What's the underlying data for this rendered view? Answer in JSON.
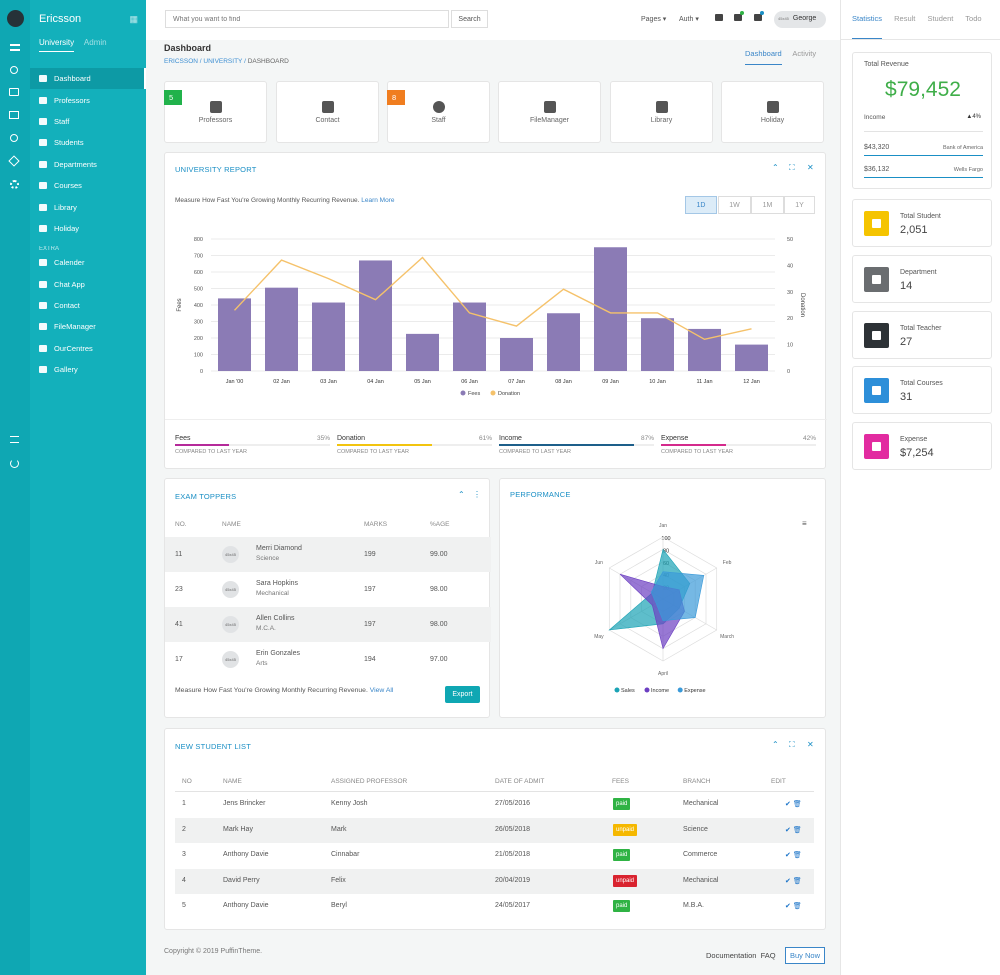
{
  "sidebar": {
    "brand": "Ericsson",
    "tabs": [
      "University",
      "Admin"
    ],
    "items": [
      "Dashboard",
      "Professors",
      "Staff",
      "Students",
      "Departments",
      "Courses",
      "Library",
      "Holiday"
    ],
    "extra_label": "EXTRA",
    "extra_items": [
      "Calender",
      "Chat App",
      "Contact",
      "FileManager",
      "OurCentres",
      "Gallery"
    ]
  },
  "topbar": {
    "search_placeholder": "What you want to find",
    "search_button": "Search",
    "menus": [
      "Pages",
      "Auth"
    ],
    "user_name": "George",
    "avatar_text": "45x45"
  },
  "page": {
    "title": "Dashboard",
    "breadcrumb": [
      "ERICSSON",
      "UNIVERSITY",
      "DASHBOARD"
    ],
    "tabs": [
      "Dashboard",
      "Activity"
    ]
  },
  "tiles": [
    {
      "label": "Professors",
      "badge": "5",
      "badge_color": "#21b24b"
    },
    {
      "label": "Contact",
      "badge": "",
      "badge_color": ""
    },
    {
      "label": "Staff",
      "badge": "8",
      "badge_color": "#f07d1f"
    },
    {
      "label": "FileManager",
      "badge": "",
      "badge_color": ""
    },
    {
      "label": "Library",
      "badge": "",
      "badge_color": ""
    },
    {
      "label": "Holiday",
      "badge": "",
      "badge_color": ""
    }
  ],
  "report": {
    "title": "UNIVERSITY REPORT",
    "description": "Measure How Fast You're Growing Monthly Recurring Revenue.",
    "learn_more": "Learn More",
    "ranges": [
      "1D",
      "1W",
      "1M",
      "1Y"
    ],
    "active_range": "1D",
    "summary": [
      {
        "name": "Fees",
        "pct": "35%",
        "value": 35,
        "color": "#b52a9a",
        "compare": "COMPARED TO LAST YEAR"
      },
      {
        "name": "Donation",
        "pct": "61%",
        "value": 61,
        "color": "#f2c40f",
        "compare": "COMPARED TO LAST YEAR"
      },
      {
        "name": "Income",
        "pct": "87%",
        "value": 87,
        "color": "#1d5f8a",
        "compare": "COMPARED TO LAST YEAR"
      },
      {
        "name": "Expense",
        "pct": "42%",
        "value": 42,
        "color": "#d42a8c",
        "compare": "COMPARED TO LAST YEAR"
      }
    ]
  },
  "chart_data": [
    {
      "type": "bar",
      "categories": [
        "Jan '00",
        "02 Jan",
        "03 Jan",
        "04 Jan",
        "05 Jan",
        "06 Jan",
        "07 Jan",
        "08 Jan",
        "09 Jan",
        "10 Jan",
        "11 Jan",
        "12 Jan"
      ],
      "series": [
        {
          "name": "Fees",
          "type": "bar",
          "axis": "left",
          "color": "#8b7bb5",
          "values": [
            440,
            505,
            415,
            670,
            225,
            415,
            200,
            350,
            750,
            320,
            255,
            160
          ]
        },
        {
          "name": "Donation",
          "type": "line",
          "axis": "right",
          "color": "#f5c26b",
          "values": [
            23,
            42,
            35,
            27,
            43,
            22,
            17,
            31,
            22,
            22,
            12,
            16
          ]
        }
      ],
      "ylabel": "Fees",
      "y2label": "Donation",
      "ylim": [
        0,
        800
      ],
      "y2lim": [
        0,
        50
      ],
      "yticks": [
        0,
        100,
        200,
        300,
        400,
        500,
        600,
        700,
        800
      ],
      "y2ticks": [
        0,
        10,
        20,
        30,
        40,
        50
      ],
      "legend": "bottom",
      "grid": true
    },
    {
      "type": "radar",
      "title": "PERFORMANCE",
      "categories": [
        "Jan",
        "Feb",
        "March",
        "April",
        "May",
        "Jun"
      ],
      "rlim": [
        0,
        100
      ],
      "rticks": [
        20,
        40,
        60,
        80,
        100
      ],
      "series": [
        {
          "name": "Sales",
          "color": "#1aa3b5",
          "values": [
            80,
            50,
            30,
            40,
            100,
            20
          ]
        },
        {
          "name": "Income",
          "color": "#6c3fc2",
          "values": [
            20,
            30,
            40,
            80,
            20,
            80
          ]
        },
        {
          "name": "Expense",
          "color": "#3a9ad9",
          "values": [
            44,
            76,
            60,
            35,
            13,
            22
          ]
        }
      ],
      "legend": "bottom"
    }
  ],
  "toppers": {
    "title": "EXAM TOPPERS",
    "columns": [
      "NO.",
      "NAME",
      "MARKS",
      "%AGE"
    ],
    "rows": [
      {
        "no": "11",
        "name": "Merri Diamond",
        "sub": "Science",
        "marks": "199",
        "pct": "99.00"
      },
      {
        "no": "23",
        "name": "Sara Hopkins",
        "sub": "Mechanical",
        "marks": "197",
        "pct": "98.00"
      },
      {
        "no": "41",
        "name": "Allen Collins",
        "sub": "M.C.A.",
        "marks": "197",
        "pct": "98.00"
      },
      {
        "no": "17",
        "name": "Erin Gonzales",
        "sub": "Arts",
        "marks": "194",
        "pct": "97.00"
      }
    ],
    "avatar_text": "45x45",
    "footer_text": "Measure How Fast You're Growing Monthly Recurring Revenue.",
    "view_all": "View All",
    "export": "Export"
  },
  "performance": {
    "title": "PERFORMANCE"
  },
  "students": {
    "title": "NEW STUDENT LIST",
    "columns": [
      "NO",
      "NAME",
      "ASSIGNED PROFESSOR",
      "DATE OF ADMIT",
      "FEES",
      "BRANCH",
      "EDIT"
    ],
    "rows": [
      {
        "no": "1",
        "name": "Jens Brincker",
        "prof": "Kenny Josh",
        "date": "27/05/2016",
        "fee": "paid",
        "fee_color": "#2fb344",
        "branch": "Mechanical"
      },
      {
        "no": "2",
        "name": "Mark Hay",
        "prof": "Mark",
        "date": "26/05/2018",
        "fee": "unpaid",
        "fee_color": "#f5b800",
        "branch": "Science"
      },
      {
        "no": "3",
        "name": "Anthony Davie",
        "prof": "Cinnabar",
        "date": "21/05/2018",
        "fee": "paid",
        "fee_color": "#2fb344",
        "branch": "Commerce"
      },
      {
        "no": "4",
        "name": "David Perry",
        "prof": "Felix",
        "date": "20/04/2019",
        "fee": "unpaid",
        "fee_color": "#d9232f",
        "branch": "Mechanical"
      },
      {
        "no": "5",
        "name": "Anthony Davie",
        "prof": "Beryl",
        "date": "24/05/2017",
        "fee": "paid",
        "fee_color": "#2fb344",
        "branch": "M.B.A."
      }
    ]
  },
  "footer": {
    "copyright": "Copyright © 2019 PuffinTheme.",
    "links": [
      "Documentation",
      "FAQ"
    ],
    "buy": "Buy Now"
  },
  "right": {
    "tabs": [
      "Statistics",
      "Result",
      "Student",
      "Todo"
    ],
    "revenue_title": "Total Revenue",
    "revenue_value": "$79,452",
    "income_label": "Income",
    "income_change": "▲4%",
    "banks": [
      {
        "amount": "$43,320",
        "name": "Bank of America"
      },
      {
        "amount": "$36,132",
        "name": "Wells Fargo"
      }
    ],
    "stats": [
      {
        "label": "Total Student",
        "value": "2,051",
        "color": "#f5c400"
      },
      {
        "label": "Department",
        "value": "14",
        "color": "#6a6d70"
      },
      {
        "label": "Total Teacher",
        "value": "27",
        "color": "#2d3236"
      },
      {
        "label": "Total Courses",
        "value": "31",
        "color": "#2d8fd9"
      },
      {
        "label": "Expense",
        "value": "$7,254",
        "color": "#e22ba0"
      }
    ]
  }
}
